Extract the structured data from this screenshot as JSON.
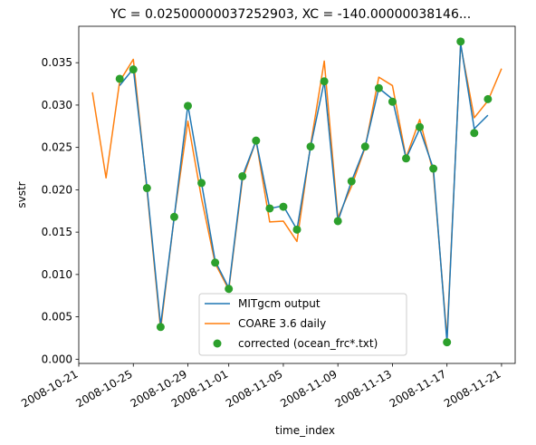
{
  "chart_data": {
    "type": "line",
    "title": "YC = 0.02500000037252903, XC = -140.00000038146...",
    "xlabel": "time_index",
    "ylabel": "svstr",
    "xlim": [
      "2008-10-21",
      "2008-11-22"
    ],
    "ylim": [
      -0.0005,
      0.0393
    ],
    "x_ticks": [
      "2008-10-21",
      "2008-10-25",
      "2008-10-29",
      "2008-11-01",
      "2008-11-05",
      "2008-11-09",
      "2008-11-13",
      "2008-11-17",
      "2008-11-21"
    ],
    "y_ticks": [
      "0.000",
      "0.005",
      "0.010",
      "0.015",
      "0.020",
      "0.025",
      "0.030",
      "0.035"
    ],
    "grid": false,
    "legend_position": "bottom-center",
    "series": [
      {
        "name": "MITgcm output",
        "style": "line",
        "color": "#1f77b4",
        "points": [
          [
            "2008-10-24",
            0.0323
          ],
          [
            "2008-10-25",
            0.0343
          ],
          [
            "2008-10-26",
            0.0203
          ],
          [
            "2008-10-27",
            0.004
          ],
          [
            "2008-10-28",
            0.0168
          ],
          [
            "2008-10-29",
            0.03
          ],
          [
            "2008-10-30",
            0.0208
          ],
          [
            "2008-10-31",
            0.0116
          ],
          [
            "2008-11-01",
            0.0084
          ],
          [
            "2008-11-02",
            0.0216
          ],
          [
            "2008-11-03",
            0.0258
          ],
          [
            "2008-11-04",
            0.0178
          ],
          [
            "2008-11-05",
            0.0181
          ],
          [
            "2008-11-06",
            0.0153
          ],
          [
            "2008-11-07",
            0.0251
          ],
          [
            "2008-11-08",
            0.0328
          ],
          [
            "2008-11-09",
            0.0163
          ],
          [
            "2008-11-10",
            0.021
          ],
          [
            "2008-11-11",
            0.0251
          ],
          [
            "2008-11-12",
            0.032
          ],
          [
            "2008-11-13",
            0.0307
          ],
          [
            "2008-11-14",
            0.0237
          ],
          [
            "2008-11-15",
            0.0272
          ],
          [
            "2008-11-16",
            0.0225
          ],
          [
            "2008-11-17",
            0.002
          ],
          [
            "2008-11-18",
            0.0373
          ],
          [
            "2008-11-19",
            0.0272
          ],
          [
            "2008-11-20",
            0.0288
          ]
        ]
      },
      {
        "name": "COARE 3.6 daily",
        "style": "line",
        "color": "#ff7f0e",
        "points": [
          [
            "2008-10-22",
            0.0315
          ],
          [
            "2008-10-23",
            0.0214
          ],
          [
            "2008-10-24",
            0.0328
          ],
          [
            "2008-10-25",
            0.0354
          ],
          [
            "2008-10-26",
            0.02
          ],
          [
            "2008-10-27",
            0.0035
          ],
          [
            "2008-10-28",
            0.0168
          ],
          [
            "2008-10-29",
            0.0281
          ],
          [
            "2008-10-30",
            0.019
          ],
          [
            "2008-10-31",
            0.0113
          ],
          [
            "2008-11-01",
            0.0082
          ],
          [
            "2008-11-02",
            0.0212
          ],
          [
            "2008-11-03",
            0.0258
          ],
          [
            "2008-11-04",
            0.0162
          ],
          [
            "2008-11-05",
            0.0163
          ],
          [
            "2008-11-06",
            0.0139
          ],
          [
            "2008-11-07",
            0.0253
          ],
          [
            "2008-11-08",
            0.0352
          ],
          [
            "2008-11-09",
            0.0167
          ],
          [
            "2008-11-10",
            0.0204
          ],
          [
            "2008-11-11",
            0.025
          ],
          [
            "2008-11-12",
            0.0333
          ],
          [
            "2008-11-13",
            0.0323
          ],
          [
            "2008-11-14",
            0.0238
          ],
          [
            "2008-11-15",
            0.0283
          ],
          [
            "2008-11-16",
            0.022
          ],
          [
            "2008-11-17",
            0.0025
          ],
          [
            "2008-11-18",
            0.0371
          ],
          [
            "2008-11-19",
            0.0285
          ],
          [
            "2008-11-20",
            0.0305
          ],
          [
            "2008-11-21",
            0.0343
          ]
        ]
      },
      {
        "name": "corrected (ocean_frc*.txt)",
        "style": "markers",
        "color": "#2ca02c",
        "points": [
          [
            "2008-10-24",
            0.0331
          ],
          [
            "2008-10-25",
            0.0342
          ],
          [
            "2008-10-26",
            0.0202
          ],
          [
            "2008-10-27",
            0.0038
          ],
          [
            "2008-10-28",
            0.0168
          ],
          [
            "2008-10-29",
            0.0299
          ],
          [
            "2008-10-30",
            0.0208
          ],
          [
            "2008-10-31",
            0.0114
          ],
          [
            "2008-11-01",
            0.0083
          ],
          [
            "2008-11-02",
            0.0216
          ],
          [
            "2008-11-03",
            0.0258
          ],
          [
            "2008-11-04",
            0.0178
          ],
          [
            "2008-11-05",
            0.018
          ],
          [
            "2008-11-06",
            0.0153
          ],
          [
            "2008-11-07",
            0.0251
          ],
          [
            "2008-11-08",
            0.0328
          ],
          [
            "2008-11-09",
            0.0163
          ],
          [
            "2008-11-10",
            0.021
          ],
          [
            "2008-11-11",
            0.0251
          ],
          [
            "2008-11-12",
            0.032
          ],
          [
            "2008-11-13",
            0.0304
          ],
          [
            "2008-11-14",
            0.0237
          ],
          [
            "2008-11-15",
            0.0274
          ],
          [
            "2008-11-16",
            0.0225
          ],
          [
            "2008-11-17",
            0.002
          ],
          [
            "2008-11-18",
            0.0375
          ],
          [
            "2008-11-19",
            0.0267
          ],
          [
            "2008-11-20",
            0.0307
          ]
        ]
      }
    ]
  }
}
